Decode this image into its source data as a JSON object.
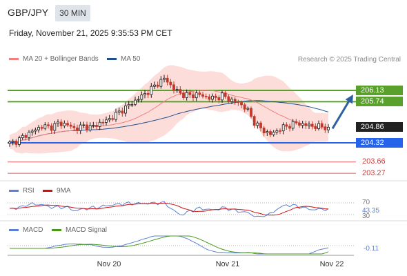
{
  "header": {
    "symbol": "GBP/JPY",
    "timeframe": "30 MIN",
    "timestamp": "Friday, November 21, 2025 9:35:53 PM CET",
    "attribution": "Research © 2025 Trading Central"
  },
  "legends": {
    "ma20": "MA 20 + Bollinger Bands",
    "ma50": "MA 50",
    "rsi": "RSI",
    "rsi_ma": "9MA",
    "macd": "MACD",
    "macd_signal": "MACD Signal"
  },
  "colors": {
    "candle_up": "#1a1a1a",
    "candle_down": "#c0392b",
    "ma20": "#f08080",
    "ma50": "#1f4e8c",
    "bollinger_fill": "#fbd5d0",
    "resistance": "#5aa02c",
    "support_blue": "#2563eb",
    "support_red": "#e35b5b",
    "arrow": "#2e5f9e",
    "rsi": "#5b7fd6",
    "rsi_ma": "#cc1111",
    "macd": "#5b7fd6",
    "macd_signal": "#4a9a1a"
  },
  "price_levels": [
    {
      "value": "206.13",
      "kind": "resistance",
      "tag": "green"
    },
    {
      "value": "205.74",
      "kind": "resistance",
      "tag": "green"
    },
    {
      "value": "204.86",
      "kind": "last",
      "tag": "black"
    },
    {
      "value": "204.32",
      "kind": "support",
      "tag": "blue"
    },
    {
      "value": "203.66",
      "kind": "support",
      "tag": "red-text"
    },
    {
      "value": "203.27",
      "kind": "support",
      "tag": "red-text"
    }
  ],
  "rsi_panel": {
    "upper_level": "70",
    "lower_level": "30",
    "value": "43.35"
  },
  "macd_panel": {
    "value": "-0.11"
  },
  "x_axis": [
    "Nov 20",
    "Nov 21",
    "Nov 22"
  ],
  "chart_data": {
    "type": "candlestick",
    "timeframe": "30 MIN",
    "y_range": [
      203.1,
      206.75
    ],
    "last_price": 204.86,
    "ohlc_stats_note": "approximate path of 30-minute closes read from the chart",
    "close_path": [
      204.3,
      204.4,
      204.6,
      204.75,
      204.9,
      204.85,
      205.0,
      204.95,
      204.8,
      204.9,
      204.85,
      205.0,
      205.1,
      205.3,
      205.5,
      205.7,
      205.9,
      206.1,
      206.35,
      206.55,
      206.2,
      206.0,
      205.95,
      206.0,
      205.9,
      205.85,
      205.95,
      205.8,
      205.7,
      205.5,
      205.0,
      204.75,
      204.6,
      204.8,
      204.9,
      205.0,
      204.95,
      204.9,
      204.88,
      204.86
    ],
    "series": [
      {
        "name": "MA 20 + Bollinger Bands"
      },
      {
        "name": "MA 50"
      }
    ],
    "projection": {
      "from": 204.86,
      "to": 206.13,
      "direction": "up"
    }
  }
}
